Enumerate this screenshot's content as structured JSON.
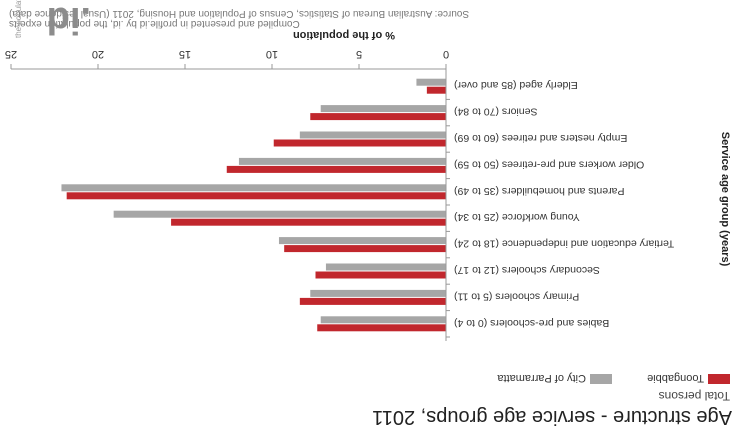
{
  "header": {
    "title": "Age structure - service age groups, 2011",
    "subtitle": "Total persons"
  },
  "legend": [
    {
      "label": "Toongabbie",
      "color": "#c1272d"
    },
    {
      "label": "City of Parramatta",
      "color": "#a6a6a6"
    }
  ],
  "footer": {
    "source_line1": "Source: Australian Bureau of Statistics, Census of Population and Housing, 2011 (Usual residence data)",
    "source_line2": "Compiled and presented in profile.id by .id, the population experts",
    "logo_text": ".id",
    "logo_tagline": "the population experts"
  },
  "chart_data": {
    "type": "bar",
    "orientation": "horizontal",
    "title": "Age structure - service age groups, 2011",
    "subtitle": "Total persons",
    "xlabel": "% of the population",
    "ylabel": "Service age group (years)",
    "xlim": [
      0,
      25
    ],
    "xticks": [
      0,
      5,
      10,
      15,
      20,
      25
    ],
    "grid": false,
    "legend_position": "top-left",
    "categories": [
      "Babies and pre-schoolers (0 to 4)",
      "Primary schoolers (5 to 11)",
      "Secondary schoolers (12 to 17)",
      "Tertiary education and independence (18 to 24)",
      "Young workforce (25 to 34)",
      "Parents and homebuilders (35 to 49)",
      "Older workers and pre-retirees (50 to 59)",
      "Empty nesters and retirees (60 to 69)",
      "Seniors (70 to 84)",
      "Elderly aged (85 and over)"
    ],
    "series": [
      {
        "name": "Toongabbie",
        "color": "#c1272d",
        "values": [
          7.4,
          8.4,
          7.5,
          9.3,
          15.8,
          21.8,
          12.6,
          9.9,
          7.8,
          1.1
        ]
      },
      {
        "name": "City of Parramatta",
        "color": "#a6a6a6",
        "values": [
          7.2,
          7.8,
          6.9,
          9.6,
          19.1,
          22.1,
          11.9,
          8.4,
          7.2,
          1.7
        ]
      }
    ]
  }
}
